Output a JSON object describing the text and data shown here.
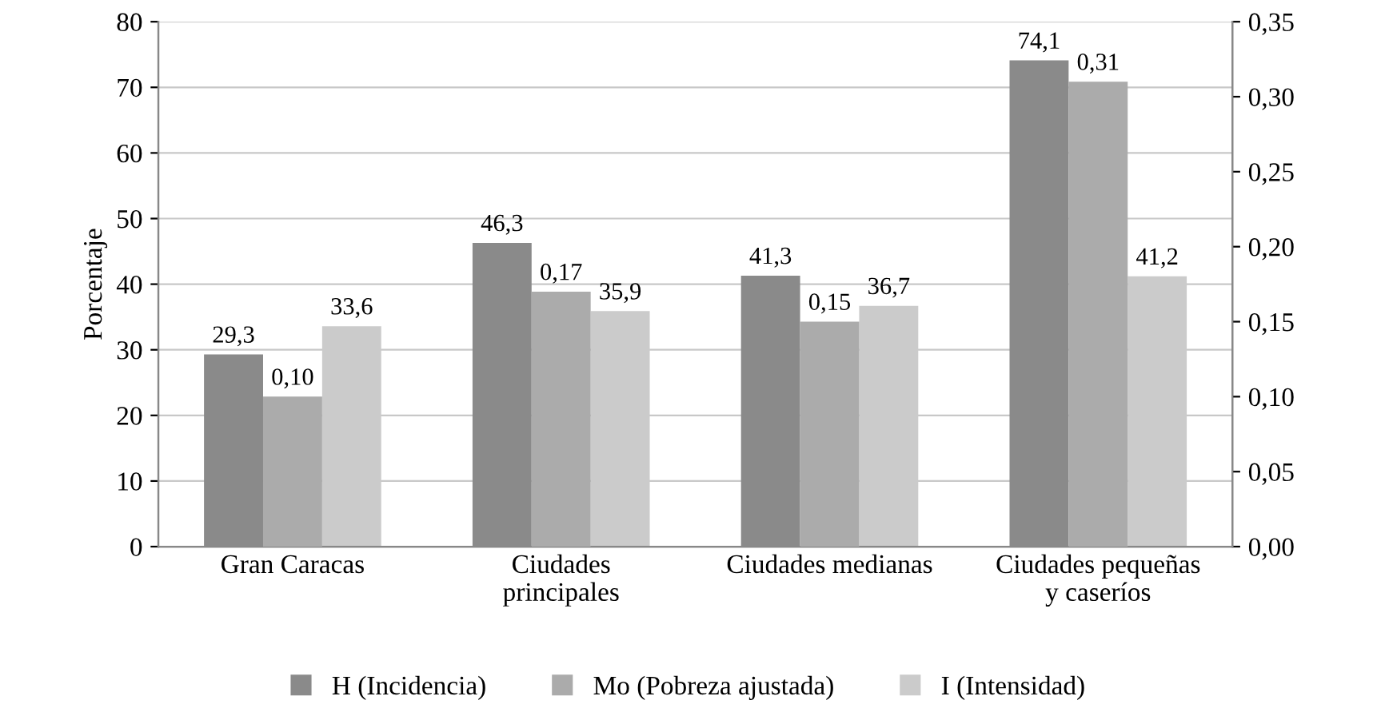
{
  "chart_data": {
    "type": "bar",
    "ylabel": "Porcentaje",
    "categories": [
      "Gran Caracas",
      "Ciudades\nprincipales",
      "Ciudades medianas",
      "Ciudades pequeñas\ny caseríos"
    ],
    "series": [
      {
        "name": "H (Incidencia)",
        "color": "#8a8a8a",
        "values": [
          29.3,
          46.3,
          41.3,
          74.1
        ],
        "value_labels": [
          "29,3",
          "46,3",
          "41,3",
          "74,1"
        ]
      },
      {
        "name": "Mo (Pobreza ajustada)",
        "color": "#ababab",
        "axis": "y2",
        "values": [
          0.1,
          0.17,
          0.15,
          0.31
        ],
        "value_labels": [
          "0,10",
          "0,17",
          "0,15",
          "0,31"
        ]
      },
      {
        "name": "I (Intensidad)",
        "color": "#cbcbcb",
        "values": [
          33.6,
          35.9,
          36.7,
          41.2
        ],
        "value_labels": [
          "33,6",
          "35,9",
          "36,7",
          "41,2"
        ]
      }
    ],
    "ylim": [
      0,
      80
    ],
    "yticks": [
      0,
      10,
      20,
      30,
      40,
      50,
      60,
      70,
      80
    ],
    "y2lim": [
      0,
      0.35
    ],
    "y2ticks": [
      {
        "value": 0,
        "label": "0,00"
      },
      {
        "value": 0.05,
        "label": "0,05"
      },
      {
        "value": 0.1,
        "label": "0,10"
      },
      {
        "value": 0.15,
        "label": "0,15"
      },
      {
        "value": 0.2,
        "label": "0,20"
      },
      {
        "value": 0.25,
        "label": "0,25"
      },
      {
        "value": 0.3,
        "label": "0,30"
      },
      {
        "value": 0.35,
        "label": "0,35"
      }
    ],
    "grid": "y",
    "legend": "bottom"
  }
}
